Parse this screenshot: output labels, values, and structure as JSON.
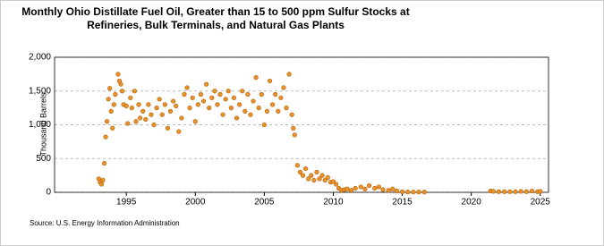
{
  "chart_data": {
    "type": "scatter",
    "title": "Monthly Ohio Distillate Fuel Oil, Greater than 15 to 500 ppm Sulfur Stocks at Refineries, Bulk Terminals, and Natural Gas Plants",
    "y_label": "Thousand Barrels",
    "source": "Source: U.S. Energy Information Administration",
    "color": "#e8912d",
    "grid": true,
    "xlim": [
      1989.8,
      2025.6
    ],
    "xticks": [
      1995,
      2000,
      2005,
      2010,
      2015,
      2020,
      2025
    ],
    "ylim": [
      0,
      2000
    ],
    "yticks": [
      0,
      500,
      {
        "value": 1000,
        "label": "1,000"
      },
      {
        "value": 1500,
        "label": "1,500"
      },
      {
        "value": 2000,
        "label": "2,000"
      }
    ],
    "x": [
      1993.0,
      1993.1,
      1993.2,
      1993.3,
      1993.4,
      1993.5,
      1993.6,
      1993.7,
      1993.8,
      1993.9,
      1994.0,
      1994.1,
      1994.2,
      1994.4,
      1994.5,
      1994.6,
      1994.7,
      1994.8,
      1995.0,
      1995.1,
      1995.3,
      1995.4,
      1995.6,
      1995.7,
      1995.9,
      1996.0,
      1996.2,
      1996.4,
      1996.6,
      1996.8,
      1997.0,
      1997.2,
      1997.4,
      1997.6,
      1997.8,
      1998.0,
      1998.2,
      1998.4,
      1998.6,
      1998.8,
      1999.0,
      1999.2,
      1999.4,
      1999.6,
      1999.8,
      2000.0,
      2000.2,
      2000.4,
      2000.6,
      2000.8,
      2001.0,
      2001.2,
      2001.4,
      2001.6,
      2001.8,
      2002.0,
      2002.2,
      2002.4,
      2002.6,
      2002.8,
      2003.0,
      2003.2,
      2003.4,
      2003.6,
      2003.8,
      2004.0,
      2004.2,
      2004.4,
      2004.6,
      2004.8,
      2005.0,
      2005.2,
      2005.4,
      2005.6,
      2005.8,
      2006.0,
      2006.2,
      2006.4,
      2006.6,
      2006.8,
      2007.0,
      2007.1,
      2007.2,
      2007.4,
      2007.6,
      2007.8,
      2008.0,
      2008.2,
      2008.4,
      2008.6,
      2008.8,
      2009.0,
      2009.2,
      2009.4,
      2009.6,
      2009.8,
      2010.0,
      2010.2,
      2010.4,
      2010.6,
      2010.8,
      2011.0,
      2011.3,
      2011.6,
      2012.0,
      2012.3,
      2012.6,
      2013.0,
      2013.3,
      2013.6,
      2014.0,
      2014.3,
      2014.6,
      2015.0,
      2015.4,
      2015.8,
      2016.2,
      2016.6,
      2021.4,
      2021.6,
      2022.0,
      2022.4,
      2022.8,
      2023.2,
      2023.6,
      2024.0,
      2024.4,
      2024.8,
      2025.0
    ],
    "values": [
      200,
      150,
      120,
      180,
      430,
      820,
      1050,
      1380,
      1540,
      1200,
      950,
      1300,
      1450,
      1750,
      1650,
      1600,
      1500,
      1300,
      1280,
      1020,
      1400,
      1250,
      1500,
      1050,
      1300,
      1100,
      1200,
      1080,
      1300,
      1150,
      1000,
      1250,
      1380,
      1150,
      1300,
      950,
      1200,
      1350,
      1280,
      900,
      1100,
      1450,
      1550,
      1250,
      1400,
      1050,
      1300,
      1450,
      1350,
      1600,
      1250,
      1400,
      1500,
      1300,
      1450,
      1150,
      1380,
      1500,
      1250,
      1400,
      1100,
      1300,
      1500,
      1200,
      1450,
      1150,
      1350,
      1700,
      1250,
      1450,
      1000,
      1200,
      1650,
      1300,
      1450,
      1200,
      1400,
      1550,
      1250,
      1750,
      1150,
      950,
      850,
      400,
      300,
      250,
      350,
      200,
      250,
      180,
      300,
      200,
      250,
      180,
      220,
      150,
      160,
      120,
      60,
      30,
      40,
      50,
      30,
      60,
      80,
      50,
      100,
      60,
      80,
      40,
      30,
      50,
      20,
      10,
      5,
      5,
      5,
      5,
      20,
      15,
      10,
      10,
      10,
      10,
      15,
      10,
      20,
      10,
      15
    ]
  }
}
